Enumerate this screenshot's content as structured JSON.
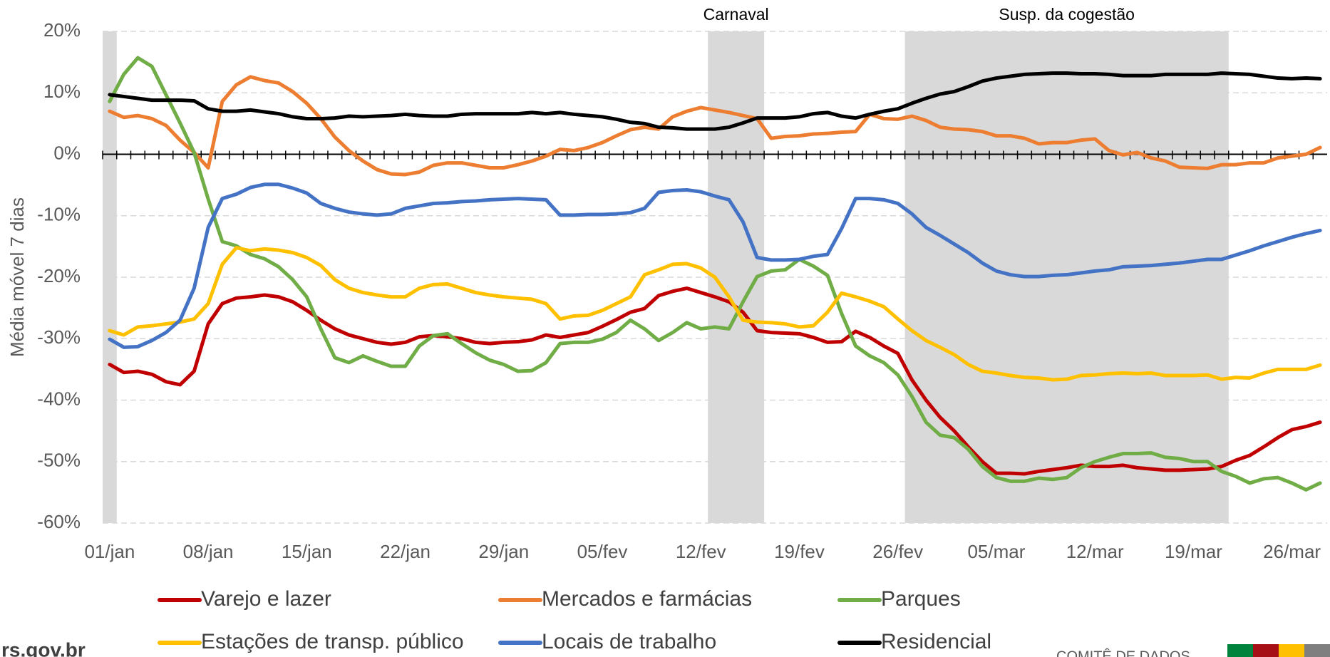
{
  "chart_data": {
    "type": "line",
    "y_label": "Média móvel 7 dias",
    "categories": [
      "01/jan",
      null,
      null,
      null,
      null,
      null,
      null,
      "08/jan",
      null,
      null,
      null,
      null,
      null,
      null,
      "15/jan",
      null,
      null,
      null,
      null,
      null,
      null,
      "22/jan",
      null,
      null,
      null,
      null,
      null,
      null,
      "29/jan",
      null,
      null,
      null,
      null,
      null,
      null,
      "05/fev",
      null,
      null,
      null,
      null,
      null,
      null,
      "12/fev",
      null,
      null,
      null,
      null,
      null,
      null,
      "19/fev",
      null,
      null,
      null,
      null,
      null,
      null,
      "26/fev",
      null,
      null,
      null,
      null,
      null,
      null,
      "05/mar",
      null,
      null,
      null,
      null,
      null,
      null,
      "12/mar",
      null,
      null,
      null,
      null,
      null,
      null,
      "19/mar",
      null,
      null,
      null,
      null,
      null,
      null,
      "26/mar",
      null,
      null
    ],
    "ylim": [
      -60,
      20
    ],
    "yticks": [
      {
        "value": -60,
        "label": "-60%"
      },
      {
        "value": -50,
        "label": "-50%"
      },
      {
        "value": -40,
        "label": "-40%"
      },
      {
        "value": -30,
        "label": "-30%"
      },
      {
        "value": -20,
        "label": "-20%"
      },
      {
        "value": -10,
        "label": "-10%"
      },
      {
        "value": 0,
        "label": "0%"
      },
      {
        "value": 10,
        "label": "10%"
      },
      {
        "value": 20,
        "label": "20%"
      }
    ],
    "grid": true,
    "shaded_regions": [
      {
        "from": 0,
        "to": 0
      },
      {
        "label": "Carnaval",
        "from": 43,
        "to": 46
      },
      {
        "label": "Susp. da cogestão",
        "from": 57,
        "to": 79
      }
    ],
    "shade_color": "#d9d9d9",
    "legend": "bottom",
    "series": [
      {
        "name": "Varejo e lazer",
        "color": "#c00000",
        "values": [
          -34.2,
          -35.5,
          -35.3,
          -35.8,
          -37,
          -37.5,
          -35.3,
          -27.6,
          -24.3,
          -23.4,
          -23.2,
          -22.9,
          -23.2,
          -24,
          -25.4,
          -27,
          -28.4,
          -29.4,
          -30,
          -30.6,
          -30.9,
          -30.6,
          -29.7,
          -29.5,
          -29.7,
          -30,
          -30.6,
          -30.8,
          -30.6,
          -30.5,
          -30.2,
          -29.4,
          -29.8,
          -29.4,
          -29,
          -28,
          -26.9,
          -25.7,
          -25.1,
          -23,
          -22.3,
          -21.8,
          -22.5,
          -23.2,
          -24,
          -25.7,
          -28.7,
          -29,
          -29.1,
          -29.2,
          -29.8,
          -30.6,
          -30.5,
          -28.8,
          -29.8,
          -31.2,
          -32.4,
          -36.7,
          -40,
          -42.8,
          -45,
          -47.6,
          -50,
          -51.9,
          -51.9,
          -52,
          -51.6,
          -51.3,
          -51,
          -50.6,
          -50.8,
          -50.8,
          -50.6,
          -51,
          -51.2,
          -51.4,
          -51.4,
          -51.3,
          -51.2,
          -50.8,
          -49.8,
          -49,
          -47.6,
          -46.1,
          -44.8,
          -44.3,
          -43.6
        ]
      },
      {
        "name": "Mercados e farmácias",
        "color": "#ed7d31",
        "values": [
          7,
          6,
          6.3,
          5.8,
          4.7,
          2.3,
          0.3,
          -2.2,
          8.6,
          11.3,
          12.6,
          12,
          11.6,
          10.2,
          8.3,
          5.8,
          2.8,
          0.6,
          -1.1,
          -2.5,
          -3.2,
          -3.3,
          -2.9,
          -1.8,
          -1.4,
          -1.4,
          -1.8,
          -2.2,
          -2.2,
          -1.7,
          -1.1,
          -0.3,
          0.8,
          0.6,
          1.1,
          1.9,
          3,
          4,
          4.4,
          4.1,
          6.1,
          7,
          7.6,
          7.2,
          6.8,
          6.3,
          5.8,
          2.6,
          2.9,
          3,
          3.3,
          3.4,
          3.6,
          3.7,
          6.5,
          5.8,
          5.7,
          6.2,
          5.5,
          4.4,
          4.1,
          4,
          3.7,
          3,
          3,
          2.6,
          1.7,
          1.9,
          1.9,
          2.3,
          2.5,
          0.6,
          -0.1,
          0.3,
          -0.6,
          -1.1,
          -2.1,
          -2.2,
          -2.3,
          -1.7,
          -1.7,
          -1.4,
          -1.4,
          -0.6,
          -0.3,
          0,
          1.1
        ]
      },
      {
        "name": "Parques",
        "color": "#70ad47",
        "values": [
          8.6,
          13,
          15.7,
          14.3,
          9.7,
          5.1,
          0.3,
          -7.3,
          -14.2,
          -14.9,
          -16.3,
          -17,
          -18.3,
          -20.4,
          -23.2,
          -28.4,
          -33.1,
          -33.9,
          -32.8,
          -33.7,
          -34.5,
          -34.5,
          -31.2,
          -29.5,
          -29.2,
          -30.8,
          -32.3,
          -33.5,
          -34.2,
          -35.3,
          -35.2,
          -33.9,
          -30.8,
          -30.6,
          -30.6,
          -30.1,
          -29,
          -27,
          -28.4,
          -30.3,
          -29,
          -27.4,
          -28.4,
          -28.1,
          -28.4,
          -24,
          -19.9,
          -19,
          -18.8,
          -17.1,
          -18.2,
          -19.7,
          -25.9,
          -31.2,
          -32.8,
          -33.9,
          -35.9,
          -39.4,
          -43.6,
          -45.7,
          -46.1,
          -48,
          -50.8,
          -52.6,
          -53.2,
          -53.2,
          -52.7,
          -52.9,
          -52.6,
          -51,
          -50,
          -49.3,
          -48.7,
          -48.7,
          -48.6,
          -49.3,
          -49.5,
          -50,
          -50,
          -51.6,
          -52.4,
          -53.5,
          -52.8,
          -52.6,
          -53.5,
          -54.6,
          -53.5
        ]
      },
      {
        "name": "Estações de transp. público",
        "color": "#ffc000",
        "values": [
          -28.7,
          -29.4,
          -28.1,
          -27.9,
          -27.6,
          -27.3,
          -26.8,
          -24.3,
          -17.9,
          -15.2,
          -15.7,
          -15.4,
          -15.6,
          -16,
          -16.8,
          -18.1,
          -20.4,
          -21.8,
          -22.5,
          -22.9,
          -23.2,
          -23.2,
          -21.8,
          -21.2,
          -21.1,
          -21.8,
          -22.5,
          -22.9,
          -23.2,
          -23.4,
          -23.6,
          -24.3,
          -26.8,
          -26.3,
          -26.2,
          -25.4,
          -24.3,
          -23.2,
          -19.6,
          -18.8,
          -17.9,
          -17.8,
          -18.5,
          -20,
          -23.2,
          -27,
          -27.3,
          -27.4,
          -27.6,
          -28.1,
          -27.9,
          -25.7,
          -22.6,
          -23.2,
          -23.9,
          -24.8,
          -26.8,
          -28.7,
          -30.3,
          -31.4,
          -32.6,
          -34.2,
          -35.3,
          -35.6,
          -36,
          -36.3,
          -36.4,
          -36.7,
          -36.6,
          -36,
          -35.9,
          -35.7,
          -35.6,
          -35.7,
          -35.6,
          -36,
          -36,
          -36,
          -35.9,
          -36.6,
          -36.3,
          -36.4,
          -35.6,
          -35,
          -35,
          -35,
          -34.3
        ]
      },
      {
        "name": "Locais de trabalho",
        "color": "#4472c4",
        "values": [
          -30.1,
          -31.4,
          -31.3,
          -30.3,
          -29,
          -27,
          -21.8,
          -11.9,
          -7.2,
          -6.5,
          -5.4,
          -4.9,
          -4.9,
          -5.5,
          -6.3,
          -8,
          -8.8,
          -9.4,
          -9.7,
          -9.9,
          -9.7,
          -8.8,
          -8.4,
          -8,
          -7.9,
          -7.7,
          -7.6,
          -7.4,
          -7.3,
          -7.2,
          -7.3,
          -7.4,
          -9.9,
          -9.9,
          -9.8,
          -9.8,
          -9.7,
          -9.5,
          -8.8,
          -6.2,
          -5.9,
          -5.8,
          -6.1,
          -6.8,
          -7.4,
          -11,
          -16.8,
          -17.2,
          -17.2,
          -17.1,
          -16.6,
          -16.3,
          -12.1,
          -7.2,
          -7.2,
          -7.4,
          -8,
          -9.7,
          -11.9,
          -13.2,
          -14.6,
          -16,
          -17.7,
          -19,
          -19.6,
          -19.9,
          -19.9,
          -19.7,
          -19.6,
          -19.3,
          -19,
          -18.8,
          -18.3,
          -18.2,
          -18.1,
          -17.9,
          -17.7,
          -17.4,
          -17.1,
          -17.1,
          -16.4,
          -15.7,
          -14.9,
          -14.2,
          -13.5,
          -12.9,
          -12.4
        ]
      },
      {
        "name": "Residencial",
        "color": "#000000",
        "values": [
          9.7,
          9.4,
          9.1,
          8.8,
          8.8,
          8.8,
          8.7,
          7.4,
          7,
          7,
          7.2,
          6.9,
          6.6,
          6.1,
          5.8,
          5.8,
          5.9,
          6.2,
          6.1,
          6.2,
          6.3,
          6.5,
          6.3,
          6.2,
          6.2,
          6.5,
          6.6,
          6.6,
          6.6,
          6.6,
          6.8,
          6.6,
          6.8,
          6.5,
          6.3,
          6.1,
          5.7,
          5.2,
          5,
          4.4,
          4.3,
          4.1,
          4.1,
          4.1,
          4.4,
          5.1,
          5.9,
          5.9,
          5.9,
          6.1,
          6.6,
          6.8,
          6.2,
          5.9,
          6.5,
          7,
          7.4,
          8.3,
          9.1,
          9.8,
          10.2,
          11,
          11.9,
          12.4,
          12.7,
          13,
          13.1,
          13.2,
          13.2,
          13.1,
          13.1,
          13,
          12.8,
          12.8,
          12.8,
          13,
          13,
          13,
          13,
          13.2,
          13.1,
          13,
          12.7,
          12.4,
          12.3,
          12.4,
          12.3
        ]
      }
    ]
  },
  "footer": {
    "site": "rs.gov.br",
    "brand": "COMITÊ DE DADOS"
  }
}
